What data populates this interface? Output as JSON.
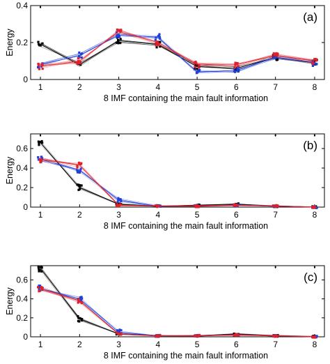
{
  "chart_data": [
    {
      "type": "line",
      "panel_label": "(a)",
      "xlabel": "8 IMF containing the main fault information",
      "ylabel": "Energy",
      "x": [
        1,
        2,
        3,
        4,
        5,
        6,
        7,
        8
      ],
      "xticks": [
        "1",
        "2",
        "3",
        "4",
        "5",
        "6",
        "7",
        "8"
      ],
      "ylim": [
        0,
        0.4
      ],
      "yticks": [
        {
          "v": 0,
          "label": "0"
        },
        {
          "v": 0.2,
          "label": "0.2"
        },
        {
          "v": 0.4,
          "label": "0.4"
        }
      ],
      "series": [
        {
          "color": "#000000",
          "values": [
            0.19,
            0.08,
            0.21,
            0.19,
            0.07,
            0.06,
            0.12,
            0.09
          ]
        },
        {
          "color": "#1f3fd6",
          "values": [
            0.08,
            0.13,
            0.24,
            0.23,
            0.04,
            0.05,
            0.12,
            0.09
          ]
        },
        {
          "color": "#e0202a",
          "values": [
            0.07,
            0.1,
            0.26,
            0.2,
            0.08,
            0.08,
            0.13,
            0.1
          ]
        }
      ]
    },
    {
      "type": "line",
      "panel_label": "(b)",
      "xlabel": "8 IMF containing the main fault information",
      "ylabel": "Energy",
      "x": [
        1,
        2,
        3,
        4,
        5,
        6,
        7,
        8
      ],
      "xticks": [
        "1",
        "2",
        "3",
        "4",
        "5",
        "6",
        "7",
        "8"
      ],
      "ylim": [
        0,
        0.75
      ],
      "yticks": [
        {
          "v": 0,
          "label": "0"
        },
        {
          "v": 0.2,
          "label": "0.2"
        },
        {
          "v": 0.4,
          "label": "0.4"
        },
        {
          "v": 0.6,
          "label": "0.6"
        }
      ],
      "series": [
        {
          "color": "#000000",
          "values": [
            0.66,
            0.2,
            0.03,
            0.01,
            0.02,
            0.03,
            0.01,
            0.0
          ]
        },
        {
          "color": "#1f3fd6",
          "values": [
            0.49,
            0.38,
            0.07,
            0.01,
            0.01,
            0.02,
            0.01,
            0.0
          ]
        },
        {
          "color": "#e0202a",
          "values": [
            0.49,
            0.43,
            0.02,
            0.01,
            0.01,
            0.02,
            0.01,
            0.0
          ]
        }
      ]
    },
    {
      "type": "line",
      "panel_label": "(c)",
      "xlabel": "8 IMF containing the main fault information",
      "ylabel": "Energy",
      "x": [
        1,
        2,
        3,
        4,
        5,
        6,
        7,
        8
      ],
      "xticks": [
        "1",
        "2",
        "3",
        "4",
        "5",
        "6",
        "7",
        "8"
      ],
      "ylim": [
        0,
        0.75
      ],
      "yticks": [
        {
          "v": 0,
          "label": "0"
        },
        {
          "v": 0.2,
          "label": "0.2"
        },
        {
          "v": 0.4,
          "label": "0.4"
        },
        {
          "v": 0.6,
          "label": "0.6"
        }
      ],
      "series": [
        {
          "color": "#000000",
          "values": [
            0.72,
            0.19,
            0.03,
            0.01,
            0.01,
            0.03,
            0.01,
            0.0
          ]
        },
        {
          "color": "#1f3fd6",
          "values": [
            0.51,
            0.4,
            0.05,
            0.01,
            0.01,
            0.02,
            0.01,
            0.0
          ]
        },
        {
          "color": "#e0202a",
          "values": [
            0.51,
            0.38,
            0.03,
            0.01,
            0.01,
            0.02,
            0.01,
            0.0
          ]
        }
      ]
    }
  ]
}
